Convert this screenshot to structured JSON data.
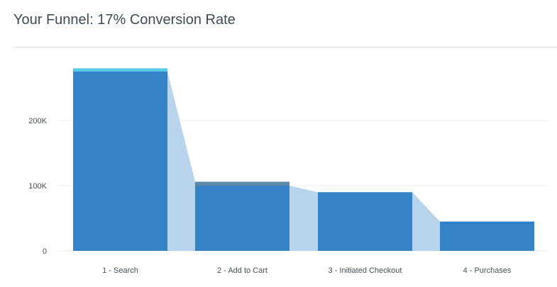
{
  "title": "Your Funnel: 17% Conversion Rate",
  "chart_data": {
    "type": "bar",
    "categories": [
      "1 - Search",
      "2 - Add to Cart",
      "3 - Initiated Checkout",
      "4 - Purchases"
    ],
    "values": [
      275000,
      100000,
      90000,
      45000
    ],
    "top_values": [
      280000,
      106000,
      90000,
      45000
    ],
    "ylim": [
      0,
      300000
    ],
    "yticks": [
      0,
      100000,
      200000
    ],
    "ytick_labels": [
      "0",
      "100K",
      "200K"
    ],
    "grid": true,
    "colors": {
      "bar": "#3583c6",
      "bar_cap_first": "#57c9e8",
      "bar_cap_other": "#5d88a7",
      "connector": "#b7d4ec",
      "grid": "#e9ecef"
    }
  }
}
